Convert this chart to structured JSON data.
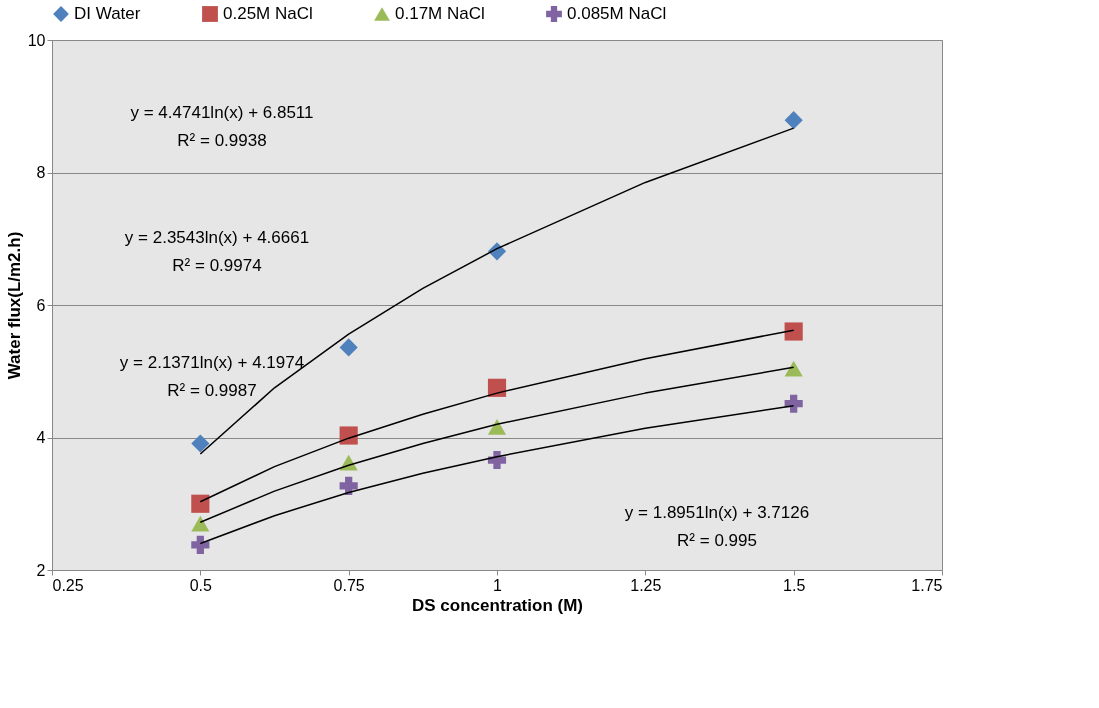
{
  "chart_data": {
    "type": "scatter",
    "xlabel": "DS concentration (M)",
    "ylabel": "Water flux(L/m2.h)",
    "xlim": [
      0.25,
      1.75
    ],
    "xticks": [
      0.25,
      0.5,
      0.75,
      1,
      1.25,
      1.5,
      1.75
    ],
    "ylim": [
      2,
      10
    ],
    "yticks": [
      2,
      4,
      6,
      8,
      10
    ],
    "grid": "y",
    "legend": "top",
    "series": [
      {
        "name": "DI Water",
        "color": "#4f81bd",
        "marker": "diamond",
        "x": [
          0.5,
          0.75,
          1,
          1.5
        ],
        "values": [
          3.91,
          5.36,
          6.81,
          8.79
        ]
      },
      {
        "name": "0.25M NaCl",
        "color": "#c0504d",
        "marker": "square",
        "x": [
          0.5,
          0.75,
          1,
          1.5
        ],
        "values": [
          3.0,
          4.03,
          4.75,
          5.6
        ]
      },
      {
        "name": "0.17M NaCl",
        "color": "#9bbb59",
        "marker": "triangle",
        "x": [
          0.5,
          0.75,
          1,
          1.5
        ],
        "values": [
          2.7,
          3.62,
          4.16,
          5.04
        ]
      },
      {
        "name": "0.085M NaCl",
        "color": "#8064a2",
        "marker": "cross",
        "x": [
          0.5,
          0.75,
          1,
          1.5
        ],
        "values": [
          2.38,
          3.27,
          3.66,
          4.51
        ]
      },
      {
        "type": "line",
        "color": "#000000",
        "x": [
          0.5,
          0.625,
          0.75,
          0.875,
          1,
          1.25,
          1.5
        ],
        "values": [
          3.75,
          4.75,
          5.56,
          6.25,
          6.85,
          7.85,
          8.67
        ]
      },
      {
        "type": "line",
        "color": "#000000",
        "x": [
          0.5,
          0.625,
          0.75,
          0.875,
          1,
          1.25,
          1.5
        ],
        "values": [
          3.03,
          3.56,
          3.99,
          4.35,
          4.67,
          5.19,
          5.62
        ]
      },
      {
        "type": "line",
        "color": "#000000",
        "x": [
          0.5,
          0.625,
          0.75,
          0.875,
          1,
          1.25,
          1.5
        ],
        "values": [
          2.72,
          3.19,
          3.58,
          3.91,
          4.2,
          4.67,
          5.06
        ]
      },
      {
        "type": "line",
        "color": "#000000",
        "x": [
          0.5,
          0.625,
          0.75,
          0.875,
          1,
          1.25,
          1.5
        ],
        "values": [
          2.4,
          2.82,
          3.17,
          3.46,
          3.71,
          4.14,
          4.48
        ]
      }
    ],
    "annotations": [
      "y = 4.4741ln(x) + 6.8511\nR² = 0.9938",
      "y = 2.3543ln(x) + 4.6661\nR² = 0.9974",
      "y = 2.1371ln(x) + 4.1974\nR² = 0.9987",
      "y = 1.8951ln(x) + 3.7126\nR² = 0.995"
    ]
  }
}
